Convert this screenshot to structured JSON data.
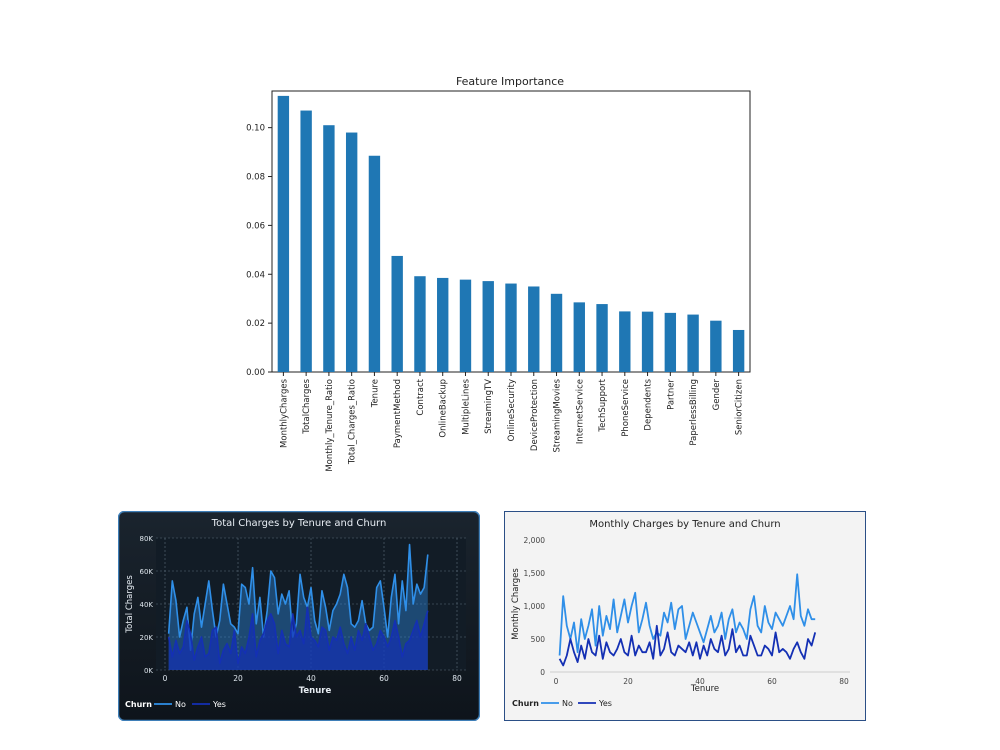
{
  "chart_data": [
    {
      "type": "bar",
      "title": "Feature Importance",
      "xlabel": "",
      "ylabel": "",
      "ylim": [
        0,
        0.115
      ],
      "yticks": [
        "0.00",
        "0.02",
        "0.04",
        "0.06",
        "0.08",
        "0.10"
      ],
      "grid": false,
      "bar_color": "#1f77b4",
      "categories": [
        "MonthlyCharges",
        "TotalCharges",
        "Monthly_Tenure_Ratio",
        "Total_Charges_Ratio",
        "Tenure",
        "PaymentMethod",
        "Contract",
        "OnlineBackup",
        "MultipleLines",
        "StreamingTV",
        "OnlineSecurity",
        "DeviceProtection",
        "StreamingMovies",
        "InternetService",
        "TechSupport",
        "PhoneService",
        "Dependents",
        "Partner",
        "PaperlessBilling",
        "Gender",
        "SeniorCitizen"
      ],
      "values": [
        0.113,
        0.107,
        0.101,
        0.098,
        0.0885,
        0.0475,
        0.0392,
        0.0385,
        0.0378,
        0.0372,
        0.0362,
        0.035,
        0.032,
        0.0285,
        0.0278,
        0.0248,
        0.0247,
        0.0242,
        0.0235,
        0.021,
        0.0172
      ]
    },
    {
      "type": "area",
      "title": "Total Charges by Tenure and Churn",
      "xlabel": "Tenure",
      "ylabel": "Total Charges",
      "xlim": [
        0,
        80
      ],
      "ylim": [
        0,
        80000
      ],
      "xticks": [
        "0",
        "20",
        "40",
        "60",
        "80"
      ],
      "yticks": [
        "0K",
        "20K",
        "40K",
        "60K",
        "80K"
      ],
      "grid": true,
      "legend": {
        "title": "Churn",
        "position": "bottom-left"
      },
      "colors": {
        "No": "#2f8fe8",
        "Yes": "#1430b4",
        "background": "#101820",
        "text": "#ffffff"
      },
      "x": [
        1,
        2,
        3,
        4,
        5,
        6,
        7,
        8,
        9,
        10,
        11,
        12,
        13,
        14,
        15,
        16,
        17,
        18,
        19,
        20,
        21,
        22,
        23,
        24,
        25,
        26,
        27,
        28,
        29,
        30,
        31,
        32,
        33,
        34,
        35,
        36,
        37,
        38,
        39,
        40,
        41,
        42,
        43,
        44,
        45,
        46,
        47,
        48,
        49,
        50,
        51,
        52,
        53,
        54,
        55,
        56,
        57,
        58,
        59,
        60,
        61,
        62,
        63,
        64,
        65,
        66,
        67,
        68,
        69,
        70,
        71,
        72
      ],
      "series": [
        {
          "name": "No",
          "values": [
            22000,
            54000,
            42000,
            20000,
            30000,
            38000,
            12000,
            34000,
            44000,
            26000,
            40000,
            54000,
            36000,
            20000,
            30000,
            52000,
            40000,
            28000,
            26000,
            22000,
            52000,
            50000,
            40000,
            62000,
            28000,
            44000,
            20000,
            36000,
            60000,
            56000,
            34000,
            46000,
            40000,
            48000,
            20000,
            28000,
            58000,
            44000,
            38000,
            50000,
            30000,
            22000,
            48000,
            38000,
            24000,
            36000,
            40000,
            46000,
            58000,
            50000,
            28000,
            26000,
            30000,
            42000,
            28000,
            24000,
            26000,
            50000,
            54000,
            38000,
            20000,
            44000,
            58000,
            28000,
            54000,
            36000,
            76000,
            40000,
            52000,
            46000,
            50000,
            70000
          ]
        },
        {
          "name": "Yes",
          "values": [
            20000,
            8000,
            18000,
            10000,
            14000,
            30000,
            22000,
            6000,
            14000,
            20000,
            8000,
            10000,
            24000,
            26000,
            4000,
            12000,
            16000,
            10000,
            24000,
            4000,
            14000,
            10000,
            20000,
            34000,
            8000,
            18000,
            22000,
            30000,
            34000,
            28000,
            10000,
            24000,
            16000,
            14000,
            34000,
            20000,
            24000,
            16000,
            38000,
            20000,
            18000,
            14000,
            26000,
            24000,
            12000,
            20000,
            18000,
            26000,
            16000,
            10000,
            20000,
            12000,
            24000,
            18000,
            28000,
            20000,
            12000,
            16000,
            24000,
            20000,
            14000,
            20000,
            30000,
            20000,
            8000,
            16000,
            18000,
            24000,
            30000,
            20000,
            28000,
            36000
          ]
        }
      ]
    },
    {
      "type": "line",
      "title": "Monthly Charges by Tenure and Churn",
      "xlabel": "Tenure",
      "ylabel": "Monthly Charges",
      "xlim": [
        0,
        80
      ],
      "ylim": [
        0,
        2000
      ],
      "xticks": [
        "0",
        "20",
        "40",
        "60",
        "80"
      ],
      "yticks": [
        "0",
        "500",
        "1,000",
        "1,500",
        "2,000"
      ],
      "grid": false,
      "legend": {
        "title": "Churn",
        "position": "bottom-left"
      },
      "colors": {
        "No": "#2f8fe8",
        "Yes": "#1430b4",
        "background": "#f3f3f3",
        "text": "#222222"
      },
      "x": [
        1,
        2,
        3,
        4,
        5,
        6,
        7,
        8,
        9,
        10,
        11,
        12,
        13,
        14,
        15,
        16,
        17,
        18,
        19,
        20,
        21,
        22,
        23,
        24,
        25,
        26,
        27,
        28,
        29,
        30,
        31,
        32,
        33,
        34,
        35,
        36,
        37,
        38,
        39,
        40,
        41,
        42,
        43,
        44,
        45,
        46,
        47,
        48,
        49,
        50,
        51,
        52,
        53,
        54,
        55,
        56,
        57,
        58,
        59,
        60,
        61,
        62,
        63,
        64,
        65,
        66,
        67,
        68,
        69,
        70,
        71,
        72
      ],
      "series": [
        {
          "name": "No",
          "values": [
            250,
            1150,
            700,
            500,
            750,
            300,
            800,
            500,
            700,
            950,
            400,
            1000,
            550,
            850,
            650,
            1100,
            600,
            850,
            1100,
            750,
            1000,
            1200,
            600,
            800,
            1050,
            700,
            500,
            600,
            550,
            900,
            750,
            1050,
            650,
            950,
            1000,
            500,
            700,
            900,
            750,
            600,
            450,
            650,
            850,
            600,
            700,
            900,
            500,
            800,
            950,
            600,
            750,
            650,
            500,
            950,
            1150,
            700,
            600,
            1000,
            750,
            650,
            900,
            800,
            700,
            850,
            1000,
            800,
            1480,
            850,
            700,
            950,
            800,
            800
          ]
        },
        {
          "name": "Yes",
          "values": [
            200,
            100,
            250,
            500,
            300,
            150,
            400,
            200,
            500,
            300,
            250,
            550,
            200,
            450,
            300,
            250,
            350,
            500,
            300,
            250,
            550,
            250,
            400,
            300,
            300,
            450,
            200,
            700,
            250,
            350,
            600,
            300,
            250,
            400,
            350,
            300,
            450,
            250,
            450,
            200,
            400,
            250,
            500,
            350,
            300,
            550,
            250,
            350,
            650,
            300,
            400,
            250,
            250,
            550,
            400,
            250,
            250,
            400,
            350,
            250,
            600,
            300,
            350,
            300,
            200,
            350,
            450,
            300,
            200,
            500,
            400,
            600
          ]
        }
      ]
    }
  ]
}
